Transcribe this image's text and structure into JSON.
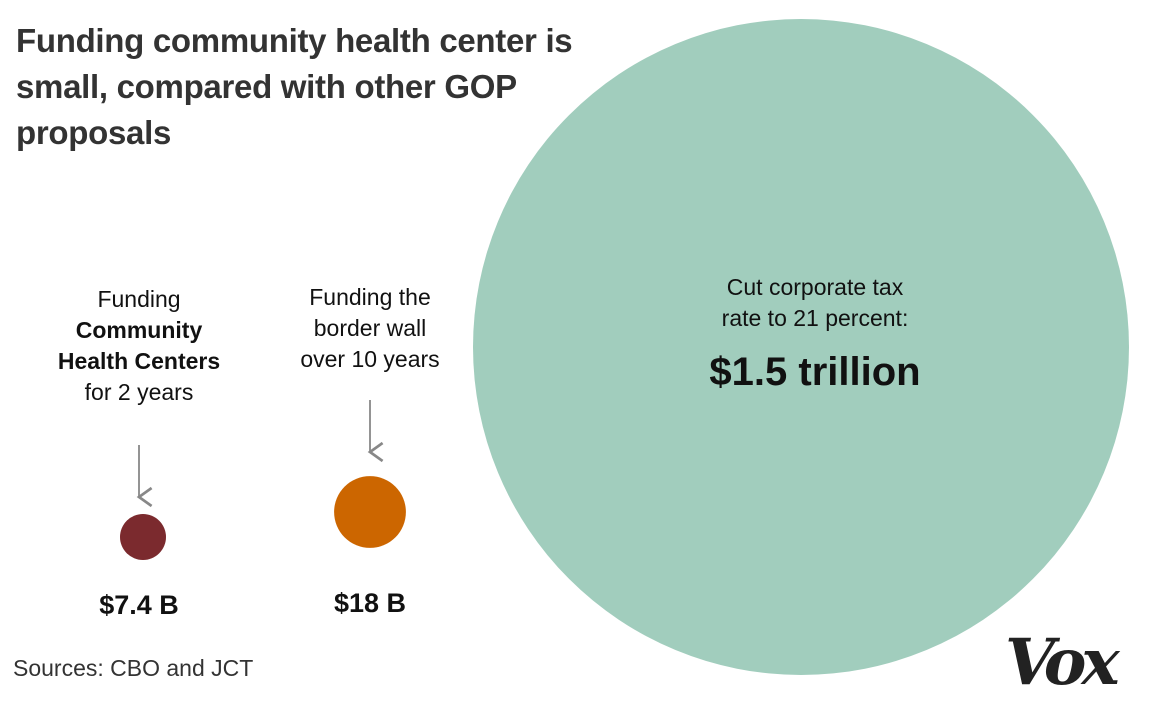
{
  "title": "Funding community health center is small, compared with other GOP proposals",
  "source": "Sources: CBO and JCT",
  "brand": "Vox",
  "labels": {
    "chc": [
      "Funding",
      "Community",
      "Health Centers",
      "for 2 years"
    ],
    "wall": [
      "Funding the",
      "border wall",
      "over 10 years"
    ],
    "tax": [
      "Cut corporate tax",
      "rate to 21 percent:"
    ]
  },
  "colors": {
    "chc": "#7b2a2e",
    "wall": "#cc6600",
    "tax": "#a1cdbd",
    "arrow": "#888888"
  },
  "chart_data": {
    "type": "bubble",
    "unit": "USD",
    "items": [
      {
        "key": "chc",
        "value_label": "$7.4 B",
        "value": 7.4
      },
      {
        "key": "wall",
        "value_label": "$18 B",
        "value": 18
      },
      {
        "key": "tax",
        "value_label": "$1.5 trillion",
        "value": 1500
      }
    ]
  }
}
